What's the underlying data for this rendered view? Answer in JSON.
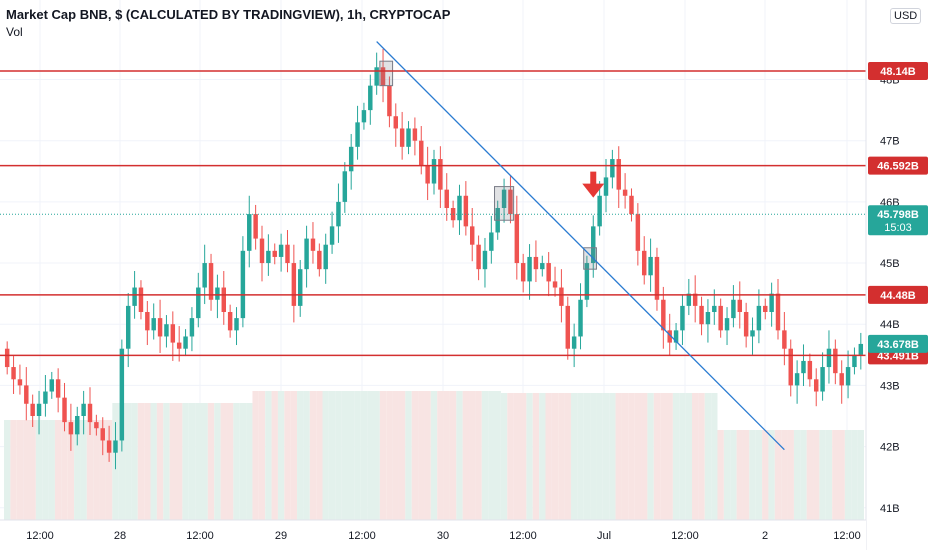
{
  "header": {
    "title": "Market Cap BNB, $ (CALCULATED BY TRADINGVIEW), 1h, CRYPTOCAP",
    "subtitle": "Vol"
  },
  "currency_label": "USD",
  "colors": {
    "up": "#26a69a",
    "down": "#ef5350",
    "level_line": "#d32f2f",
    "trendline": "#2a7bd1",
    "current_price": "#26a69a",
    "axis_text": "#131722",
    "grid": "#f0f3fa"
  },
  "chart_data": {
    "type": "candlestick",
    "title": "Market Cap BNB, $ (CALCULATED BY TRADINGVIEW), 1h, CRYPTOCAP",
    "ylim": [
      40.8,
      49.3
    ],
    "y_ticks": [
      "41B",
      "42B",
      "43B",
      "44B",
      "45B",
      "46B",
      "47B",
      "48B"
    ],
    "x_ticks": [
      "12:00",
      "28",
      "12:00",
      "29",
      "12:00",
      "30",
      "12:00",
      "Jul",
      "12:00",
      "2",
      "12:00"
    ],
    "levels": [
      {
        "label": "48.14B",
        "value": 48.14
      },
      {
        "label": "46.592B",
        "value": 46.592
      },
      {
        "label": "44.48B",
        "value": 44.48
      },
      {
        "label": "43.491B",
        "value": 43.491
      }
    ],
    "current_price": {
      "label": "45.798B",
      "value": 45.798,
      "countdown": "15:03"
    },
    "last_close": {
      "label": "43.678B",
      "value": 43.678
    },
    "trendline": {
      "from_bar": 58,
      "from_value": 48.62,
      "to_bar": 122,
      "to_value": 41.95
    },
    "highlight_boxes": [
      {
        "from_bar": 59,
        "to_bar": 60,
        "low": 47.9,
        "high": 48.3
      },
      {
        "from_bar": 77,
        "to_bar": 79,
        "low": 45.7,
        "high": 46.25
      },
      {
        "from_bar": 91,
        "to_bar": 92,
        "low": 44.9,
        "high": 45.25
      }
    ],
    "arrow_marker": {
      "bar": 92,
      "value": 46.2
    },
    "closes": [
      43.3,
      43.1,
      43.0,
      42.7,
      42.5,
      42.7,
      42.9,
      43.1,
      42.8,
      42.4,
      42.2,
      42.5,
      42.7,
      42.4,
      42.3,
      42.1,
      41.9,
      42.1,
      43.6,
      44.3,
      44.6,
      44.2,
      43.9,
      44.1,
      43.8,
      44.0,
      43.7,
      43.6,
      43.8,
      44.1,
      44.6,
      45.0,
      44.4,
      44.6,
      44.2,
      43.9,
      44.1,
      45.2,
      45.8,
      45.4,
      45.0,
      45.2,
      45.1,
      45.3,
      45.0,
      44.3,
      44.9,
      45.4,
      45.2,
      44.9,
      45.3,
      45.6,
      46.0,
      46.5,
      46.9,
      47.3,
      47.5,
      47.9,
      48.2,
      47.9,
      47.4,
      47.2,
      46.9,
      47.2,
      47.0,
      46.6,
      46.3,
      46.7,
      46.2,
      45.9,
      45.7,
      46.1,
      45.6,
      45.3,
      44.9,
      45.2,
      45.5,
      45.9,
      46.2,
      45.8,
      45.0,
      44.7,
      45.1,
      44.9,
      45.0,
      44.7,
      44.6,
      44.3,
      43.6,
      43.8,
      44.4,
      45.0,
      45.6,
      46.1,
      46.4,
      46.7,
      46.2,
      46.1,
      45.8,
      45.2,
      44.8,
      45.1,
      44.4,
      43.9,
      43.7,
      43.9,
      44.3,
      44.5,
      44.3,
      44.0,
      44.2,
      44.3,
      43.9,
      44.1,
      44.4,
      44.2,
      43.8,
      43.9,
      44.3,
      44.2,
      44.5,
      43.9,
      43.6,
      43.0,
      43.2,
      43.4,
      43.1,
      42.9,
      43.3,
      43.6,
      43.2,
      43.0,
      43.3,
      43.5,
      43.678
    ]
  }
}
